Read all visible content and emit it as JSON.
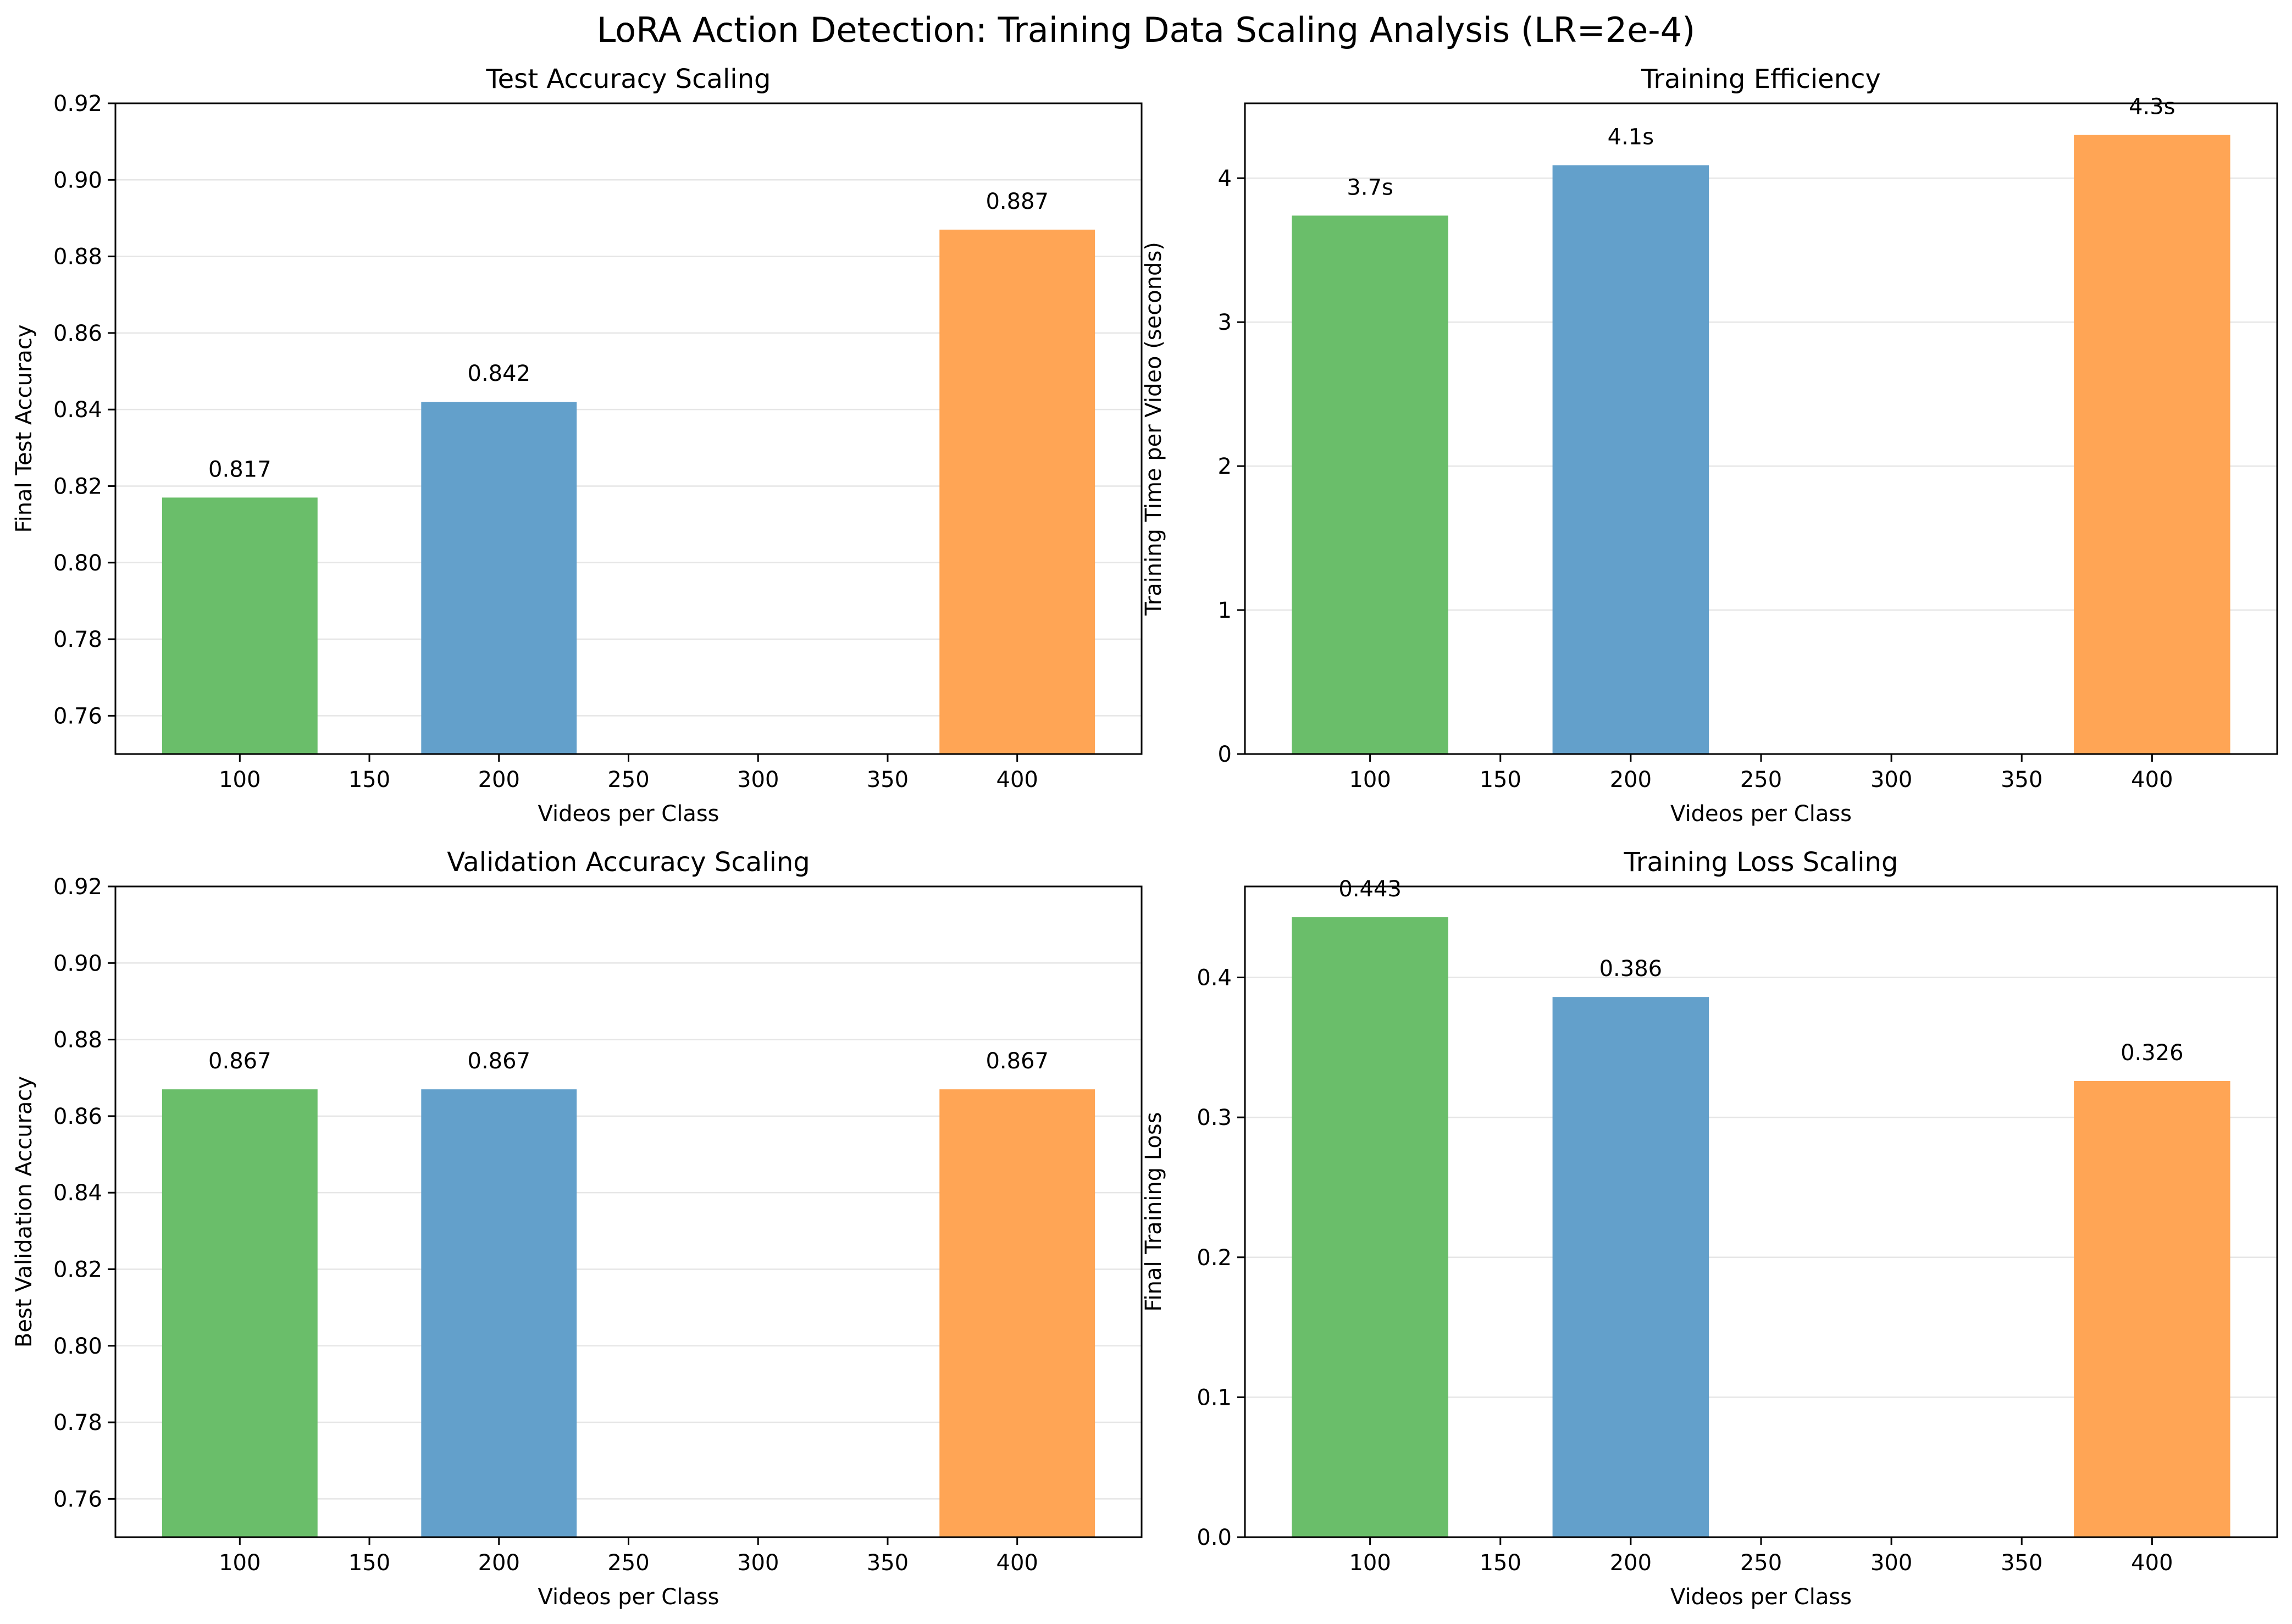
{
  "suptitle": "LoRA Action Detection: Training Data Scaling Analysis (LR=2e-4)",
  "colors": {
    "green": "#6abe6a",
    "blue": "#63a0cb",
    "orange": "#ffa555"
  },
  "chart_data": [
    {
      "type": "bar",
      "title": "Test Accuracy Scaling",
      "xlabel": "Videos per Class",
      "ylabel": "Final Test Accuracy",
      "x": [
        100,
        200,
        400
      ],
      "values": [
        0.817,
        0.842,
        0.887
      ],
      "labels": [
        "0.817",
        "0.842",
        "0.887"
      ],
      "bar_colors": [
        "#6abe6a",
        "#63a0cb",
        "#ffa555"
      ],
      "xlim": [
        52,
        448
      ],
      "ylim": [
        0.75,
        0.92
      ],
      "xticks": [
        100,
        150,
        200,
        250,
        300,
        350,
        400
      ],
      "yticks": [
        0.76,
        0.78,
        0.8,
        0.82,
        0.84,
        0.86,
        0.88,
        0.9,
        0.92
      ],
      "ytick_labels": [
        "0.76",
        "0.78",
        "0.80",
        "0.82",
        "0.84",
        "0.86",
        "0.88",
        "0.90",
        "0.92"
      ],
      "grid": "y"
    },
    {
      "type": "bar",
      "title": "Training Efficiency",
      "xlabel": "Videos per Class",
      "ylabel": "Training Time per Video (seconds)",
      "x": [
        100,
        200,
        400
      ],
      "values": [
        3.74,
        4.09,
        4.3
      ],
      "labels": [
        "3.7s",
        "4.1s",
        "4.3s"
      ],
      "bar_colors": [
        "#6abe6a",
        "#63a0cb",
        "#ffa555"
      ],
      "xlim": [
        52,
        448
      ],
      "ylim": [
        0,
        4.52
      ],
      "xticks": [
        100,
        150,
        200,
        250,
        300,
        350,
        400
      ],
      "yticks": [
        0,
        1,
        2,
        3,
        4
      ],
      "ytick_labels": [
        "0",
        "1",
        "2",
        "3",
        "4"
      ],
      "grid": "y"
    },
    {
      "type": "bar",
      "title": "Validation Accuracy Scaling",
      "xlabel": "Videos per Class",
      "ylabel": "Best Validation Accuracy",
      "x": [
        100,
        200,
        400
      ],
      "values": [
        0.867,
        0.867,
        0.867
      ],
      "labels": [
        "0.867",
        "0.867",
        "0.867"
      ],
      "bar_colors": [
        "#6abe6a",
        "#63a0cb",
        "#ffa555"
      ],
      "xlim": [
        52,
        448
      ],
      "ylim": [
        0.75,
        0.92
      ],
      "xticks": [
        100,
        150,
        200,
        250,
        300,
        350,
        400
      ],
      "yticks": [
        0.76,
        0.78,
        0.8,
        0.82,
        0.84,
        0.86,
        0.88,
        0.9,
        0.92
      ],
      "ytick_labels": [
        "0.76",
        "0.78",
        "0.80",
        "0.82",
        "0.84",
        "0.86",
        "0.88",
        "0.90",
        "0.92"
      ],
      "grid": "y"
    },
    {
      "type": "bar",
      "title": "Training Loss Scaling",
      "xlabel": "Videos per Class",
      "ylabel": "Final Training Loss",
      "x": [
        100,
        200,
        400
      ],
      "values": [
        0.443,
        0.386,
        0.326
      ],
      "labels": [
        "0.443",
        "0.386",
        "0.326"
      ],
      "bar_colors": [
        "#6abe6a",
        "#63a0cb",
        "#ffa555"
      ],
      "xlim": [
        52,
        448
      ],
      "ylim": [
        0,
        0.465
      ],
      "xticks": [
        100,
        150,
        200,
        250,
        300,
        350,
        400
      ],
      "yticks": [
        0.0,
        0.1,
        0.2,
        0.3,
        0.4
      ],
      "ytick_labels": [
        "0.0",
        "0.1",
        "0.2",
        "0.3",
        "0.4"
      ],
      "grid": "y"
    }
  ]
}
